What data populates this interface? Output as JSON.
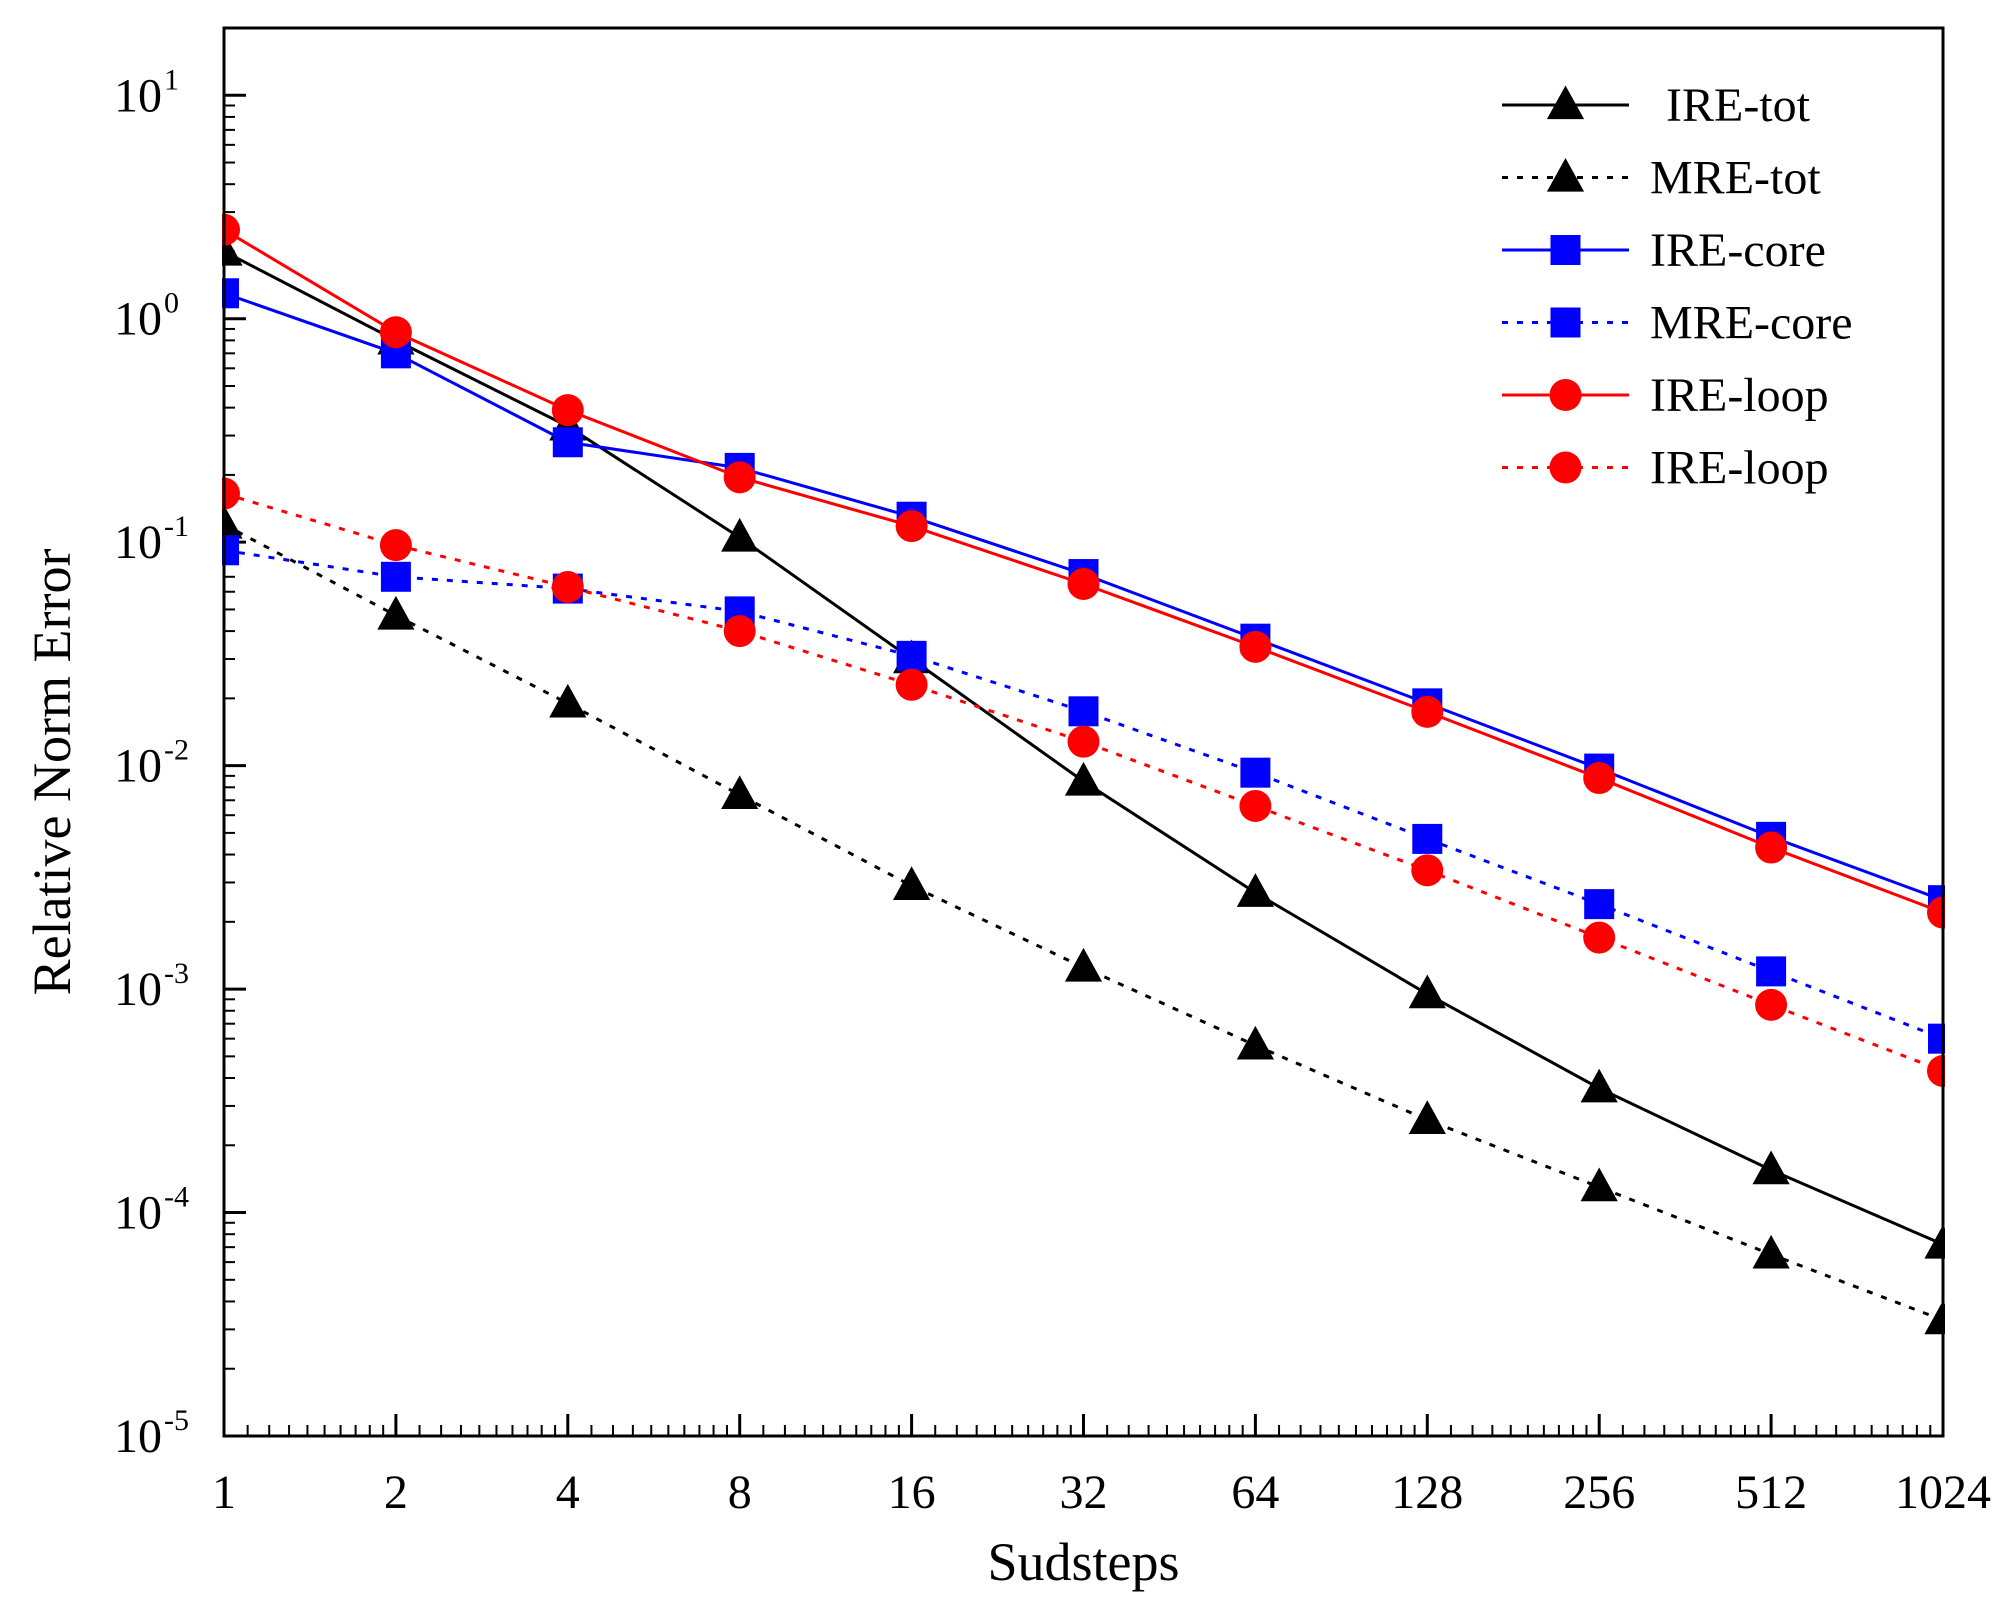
{
  "chart_data": {
    "type": "line",
    "title": "",
    "xlabel": "Sudsteps",
    "ylabel": "Relative Norm Error",
    "xscale": "log2",
    "yscale": "log10",
    "x": [
      1,
      2,
      4,
      8,
      16,
      32,
      64,
      128,
      256,
      512,
      1024
    ],
    "x_tick_labels": [
      "1",
      "2",
      "4",
      "8",
      "16",
      "32",
      "64",
      "128",
      "256",
      "512",
      "1024"
    ],
    "y_tick_labels": [
      {
        "base": "10",
        "exp": "1"
      },
      {
        "base": "10",
        "exp": "0"
      },
      {
        "base": "10",
        "exp": "-1"
      },
      {
        "base": "10",
        "exp": "-2"
      },
      {
        "base": "10",
        "exp": "-3"
      },
      {
        "base": "10",
        "exp": "-4"
      },
      {
        "base": "10",
        "exp": "-5"
      }
    ],
    "y_tick_exponents": [
      1,
      0,
      -1,
      -2,
      -3,
      -4,
      -5
    ],
    "ylim": [
      1e-05,
      20
    ],
    "xlim": [
      1,
      1024
    ],
    "legend_position": "top-right",
    "series": [
      {
        "name": "IRE-tot",
        "color": "#000000",
        "linestyle": "solid",
        "marker": "triangle",
        "values": [
          2.0,
          0.8,
          0.33,
          0.105,
          0.03,
          0.0085,
          0.0027,
          0.00095,
          0.00036,
          0.000155,
          7.2e-05
        ]
      },
      {
        "name": "MRE-tot",
        "color": "#000000",
        "linestyle": "dotted",
        "marker": "triangle",
        "values": [
          0.12,
          0.047,
          0.019,
          0.0074,
          0.0029,
          0.00125,
          0.00056,
          0.00026,
          0.00013,
          6.5e-05,
          3.3e-05
        ]
      },
      {
        "name": "IRE-core",
        "color": "#0000ff",
        "linestyle": "solid",
        "marker": "square",
        "values": [
          1.3,
          0.7,
          0.28,
          0.215,
          0.13,
          0.072,
          0.037,
          0.019,
          0.0097,
          0.0048,
          0.0025
        ]
      },
      {
        "name": "MRE-core",
        "color": "#0000ff",
        "linestyle": "dotted",
        "marker": "square",
        "values": [
          0.092,
          0.07,
          0.062,
          0.049,
          0.031,
          0.0175,
          0.0093,
          0.0047,
          0.0024,
          0.0012,
          0.0006
        ]
      },
      {
        "name": "IRE-loop",
        "color": "#ff0000",
        "linestyle": "solid",
        "marker": "circle",
        "values": [
          2.5,
          0.87,
          0.39,
          0.195,
          0.118,
          0.065,
          0.034,
          0.0174,
          0.0088,
          0.0043,
          0.0022
        ]
      },
      {
        "name": "IRE-loop",
        "color": "#ff0000",
        "linestyle": "dotted",
        "marker": "circle",
        "values": [
          0.165,
          0.097,
          0.063,
          0.04,
          0.023,
          0.0128,
          0.0066,
          0.0034,
          0.0017,
          0.00085,
          0.00043
        ]
      }
    ]
  }
}
